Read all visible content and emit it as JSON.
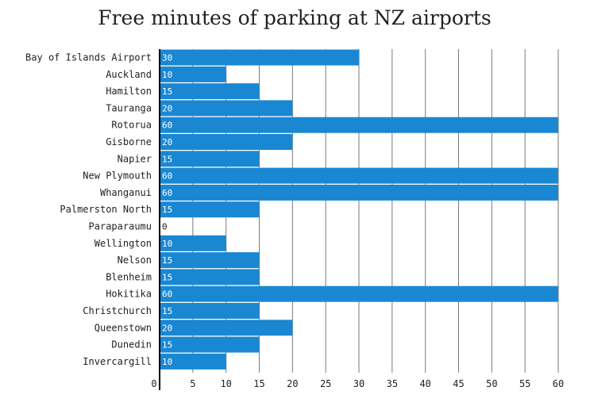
{
  "chart_data": {
    "type": "bar",
    "orientation": "horizontal",
    "title": "Free minutes of parking at NZ airports",
    "xlabel": "",
    "ylabel": "",
    "categories": [
      "Bay of Islands Airport",
      "Auckland",
      "Hamilton",
      "Tauranga",
      "Rotorua",
      "Gisborne",
      "Napier",
      "New Plymouth",
      "Whanganui",
      "Palmerston North",
      "Paraparaumu",
      "Wellington",
      "Nelson",
      "Blenheim",
      "Hokitika",
      "Christchurch",
      "Queenstown",
      "Dunedin",
      "Invercargill"
    ],
    "values": [
      30,
      10,
      15,
      20,
      60,
      20,
      15,
      60,
      60,
      15,
      0,
      10,
      15,
      15,
      60,
      15,
      20,
      15,
      10
    ],
    "xlim": [
      0,
      60
    ],
    "x_ticks": [
      "0",
      "5",
      "10",
      "15",
      "20",
      "25",
      "30",
      "35",
      "40",
      "45",
      "50",
      "55",
      "60"
    ],
    "grid": "vertical",
    "bar_color": "#1a87d3",
    "bar_label_color": "#ffffff",
    "zero_label_color": "#222222"
  }
}
